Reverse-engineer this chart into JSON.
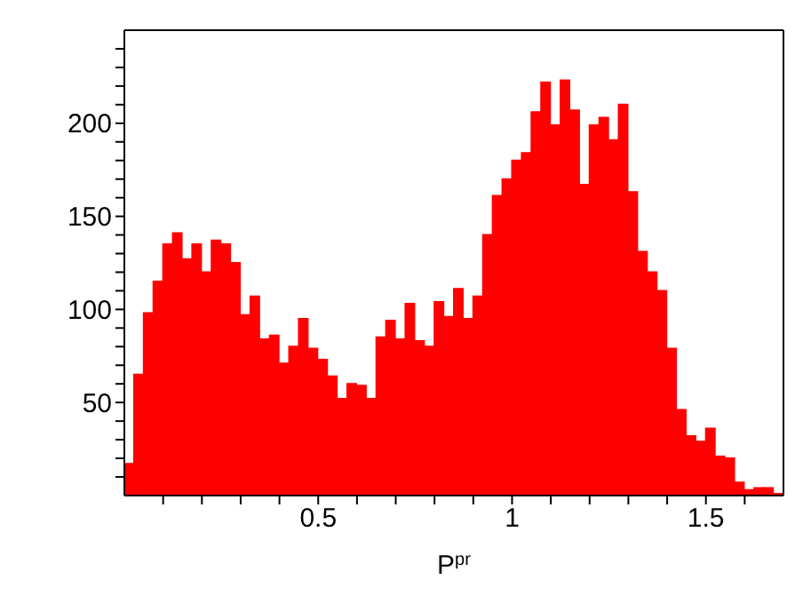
{
  "chart_data": {
    "type": "histogram",
    "xlabel": "P$^{pr}$",
    "color": "#ff0000",
    "bins": [
      0,
      0.025,
      0.05,
      0.075,
      0.1,
      0.125,
      0.15,
      0.175,
      0.2,
      0.225,
      0.25,
      0.275,
      0.3,
      0.325,
      0.35,
      0.375,
      0.4,
      0.425,
      0.45,
      0.475,
      0.5,
      0.525,
      0.55,
      0.575,
      0.6,
      0.625,
      0.65,
      0.675,
      0.7,
      0.725,
      0.75,
      0.775,
      0.8,
      0.825,
      0.85,
      0.875,
      0.9,
      0.925,
      0.95,
      0.975,
      1,
      1.025,
      1.05,
      1.075,
      1.1,
      1.125,
      1.15,
      1.175,
      1.2,
      1.225,
      1.25,
      1.275,
      1.3,
      1.325,
      1.35,
      1.375,
      1.4,
      1.425,
      1.45,
      1.475,
      1.5,
      1.525,
      1.55,
      1.575,
      1.6,
      1.625,
      1.65,
      1.675,
      1.7
    ],
    "values": [
      17,
      65,
      98,
      115,
      135,
      141,
      127,
      135,
      120,
      137,
      135,
      125,
      97,
      107,
      84,
      86,
      71,
      80,
      95,
      79,
      73,
      64,
      52,
      60,
      59,
      52,
      85,
      94,
      84,
      103,
      83,
      80,
      104,
      96,
      111,
      95,
      107,
      140,
      161,
      170,
      180,
      184,
      206,
      222,
      199,
      223,
      207,
      167,
      199,
      203,
      191,
      210,
      163,
      131,
      120,
      110,
      79,
      46,
      32,
      29,
      36,
      21,
      20,
      7,
      3,
      4,
      4,
      1
    ],
    "xlim": [
      0,
      1.7
    ],
    "ylim": [
      0,
      250
    ],
    "xticks": [
      {
        "value": 0.1,
        "label": null
      },
      {
        "value": 0.2,
        "label": null
      },
      {
        "value": 0.3,
        "label": null
      },
      {
        "value": 0.4,
        "label": null
      },
      {
        "value": 0.5,
        "label": "0.5"
      },
      {
        "value": 0.6,
        "label": null
      },
      {
        "value": 0.7,
        "label": null
      },
      {
        "value": 0.8,
        "label": null
      },
      {
        "value": 0.9,
        "label": null
      },
      {
        "value": 1,
        "label": "1"
      },
      {
        "value": 1.1,
        "label": null
      },
      {
        "value": 1.2,
        "label": null
      },
      {
        "value": 1.3,
        "label": null
      },
      {
        "value": 1.4,
        "label": null
      },
      {
        "value": 1.5,
        "label": "1.5"
      },
      {
        "value": 1.6,
        "label": null
      }
    ],
    "yticks": [
      {
        "value": 10,
        "label": null
      },
      {
        "value": 20,
        "label": null
      },
      {
        "value": 30,
        "label": null
      },
      {
        "value": 40,
        "label": null
      },
      50,
      {
        "value": 60,
        "label": null
      },
      {
        "value": 70,
        "label": null
      },
      {
        "value": 80,
        "label": null
      },
      {
        "value": 90,
        "label": null
      },
      100,
      {
        "value": 110,
        "label": null
      },
      {
        "value": 120,
        "label": null
      },
      {
        "value": 130,
        "label": null
      },
      {
        "value": 140,
        "label": null
      },
      150,
      {
        "value": 160,
        "label": null
      },
      {
        "value": 170,
        "label": null
      },
      {
        "value": 180,
        "label": null
      },
      {
        "value": 190,
        "label": null
      },
      200,
      {
        "value": 210,
        "label": null
      },
      {
        "value": 220,
        "label": null
      },
      {
        "value": 230,
        "label": null
      },
      {
        "value": 240,
        "label": null
      }
    ],
    "grid": false
  }
}
